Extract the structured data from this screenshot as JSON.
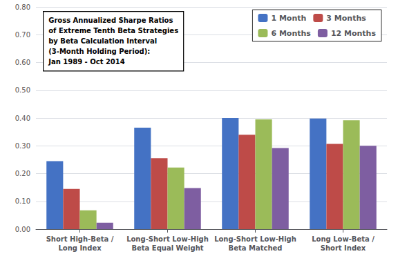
{
  "chart_data": {
    "type": "bar",
    "categories": [
      "Short High-Beta /\nLong Index",
      "Long-Short Low-High\nBeta Equal Weight",
      "Long-Short Low-High\nBeta Matched",
      "Long Low-Beta /\nShort Index"
    ],
    "series": [
      {
        "name": "1 Month",
        "color": "#4472C4",
        "values": [
          0.245,
          0.365,
          0.4,
          0.398
        ]
      },
      {
        "name": "3 Months",
        "color": "#BE4B48",
        "values": [
          0.145,
          0.255,
          0.34,
          0.307
        ]
      },
      {
        "name": "6 Months",
        "color": "#9BBB59",
        "values": [
          0.068,
          0.222,
          0.395,
          0.392
        ]
      },
      {
        "name": "12 Months",
        "color": "#7E5EA1",
        "values": [
          0.023,
          0.148,
          0.292,
          0.3
        ]
      }
    ],
    "ylim": [
      0.0,
      0.8
    ],
    "yticks": [
      {
        "value": 0.0,
        "label": "0.00"
      },
      {
        "value": 0.1,
        "label": "0.10"
      },
      {
        "value": 0.2,
        "label": "0.20"
      },
      {
        "value": 0.3,
        "label": "0.30"
      },
      {
        "value": 0.4,
        "label": "0.40"
      },
      {
        "value": 0.5,
        "label": "0.50"
      },
      {
        "value": 0.6,
        "label": "0.60"
      },
      {
        "value": 0.7,
        "label": "0.70"
      },
      {
        "value": 0.8,
        "label": "0.80"
      }
    ],
    "grid": true,
    "legend": "upper right",
    "annotation": "Gross Annualized Sharpe Ratios\nof Extreme Tenth Beta Strategies\nby Beta Calculation Interval\n(3-Month Holding Period):\nJan 1989 - Oct 2014"
  }
}
